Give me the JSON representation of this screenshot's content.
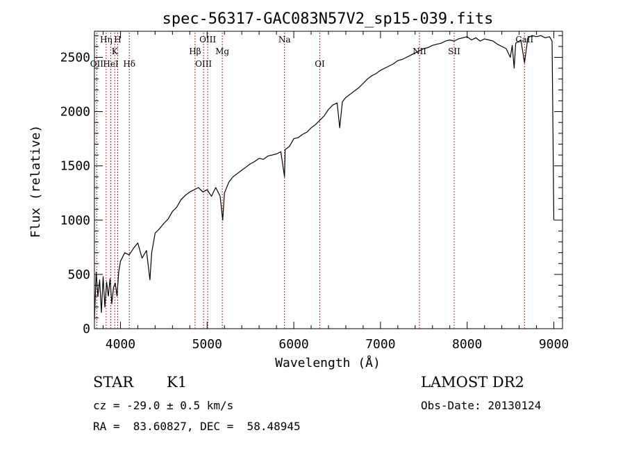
{
  "chart_data": {
    "type": "line",
    "title": "spec-56317-GAC083N57V2_sp15-039.fits",
    "xlabel": "Wavelength (Å)",
    "ylabel": "Flux (relative)",
    "xlim": [
      3700,
      9100
    ],
    "ylim": [
      0,
      2740
    ],
    "xticks": [
      4000,
      5000,
      6000,
      7000,
      8000,
      9000
    ],
    "xticks_labels": [
      "4000",
      "5000",
      "6000",
      "7000",
      "8000",
      "9000"
    ],
    "yticks": [
      0,
      500,
      1000,
      1500,
      2000,
      2500
    ],
    "yticks_labels": [
      "0",
      "500",
      "1000",
      "1500",
      "2000",
      "2500"
    ],
    "grid": false,
    "line_color": "#000000",
    "marker_color": "#b22222",
    "series": [
      {
        "x": [
          3700,
          3720,
          3740,
          3760,
          3780,
          3800,
          3820,
          3840,
          3860,
          3880,
          3900,
          3920,
          3940,
          3960,
          3980,
          4000,
          4050,
          4100,
          4150,
          4200,
          4250,
          4300,
          4340,
          4360,
          4400,
          4450,
          4500,
          4550,
          4600,
          4650,
          4700,
          4750,
          4800,
          4850,
          4900,
          4950,
          5000,
          5050,
          5100,
          5150,
          5180,
          5200,
          5250,
          5300,
          5350,
          5400,
          5450,
          5500,
          5550,
          5600,
          5650,
          5700,
          5750,
          5800,
          5850,
          5893,
          5900,
          5950,
          6000,
          6050,
          6100,
          6150,
          6200,
          6250,
          6300,
          6350,
          6400,
          6450,
          6500,
          6530,
          6560,
          6600,
          6650,
          6700,
          6750,
          6800,
          6850,
          6900,
          6950,
          7000,
          7050,
          7100,
          7150,
          7200,
          7250,
          7300,
          7350,
          7400,
          7450,
          7500,
          7550,
          7600,
          7650,
          7700,
          7750,
          7800,
          7850,
          7900,
          7950,
          8000,
          8050,
          8100,
          8150,
          8200,
          8250,
          8300,
          8350,
          8400,
          8450,
          8498,
          8520,
          8542,
          8560,
          8600,
          8620,
          8662,
          8700,
          8750,
          8800,
          8850,
          8900,
          8950,
          8980,
          9000
        ],
        "y": [
          80,
          520,
          300,
          450,
          150,
          480,
          200,
          430,
          300,
          460,
          230,
          380,
          420,
          300,
          520,
          620,
          700,
          680,
          740,
          790,
          650,
          720,
          450,
          700,
          880,
          920,
          970,
          1010,
          1080,
          1120,
          1190,
          1230,
          1260,
          1280,
          1300,
          1260,
          1280,
          1220,
          1300,
          1220,
          1000,
          1250,
          1350,
          1400,
          1430,
          1460,
          1490,
          1520,
          1540,
          1570,
          1560,
          1590,
          1600,
          1610,
          1630,
          1400,
          1650,
          1680,
          1750,
          1760,
          1790,
          1810,
          1850,
          1880,
          1920,
          1960,
          2020,
          2060,
          2080,
          1850,
          2090,
          2130,
          2160,
          2190,
          2220,
          2260,
          2300,
          2330,
          2350,
          2380,
          2400,
          2420,
          2440,
          2470,
          2480,
          2500,
          2520,
          2540,
          2560,
          2580,
          2590,
          2610,
          2620,
          2630,
          2650,
          2660,
          2650,
          2670,
          2680,
          2690,
          2660,
          2680,
          2650,
          2670,
          2660,
          2650,
          2620,
          2600,
          2580,
          2500,
          2610,
          2400,
          2630,
          2650,
          2660,
          2450,
          2680,
          2700,
          2690,
          2700,
          2680,
          2690,
          2650,
          1000
        ]
      }
    ],
    "line_markers": [
      {
        "label": "OII",
        "x": 3727,
        "row": 3
      },
      {
        "label": "Hη",
        "x": 3835,
        "row": 1
      },
      {
        "label": "HeI",
        "x": 3889,
        "row": 3
      },
      {
        "label": "K",
        "x": 3934,
        "row": 2
      },
      {
        "label": "H",
        "x": 3968,
        "row": 1
      },
      {
        "label": "Hδ",
        "x": 4102,
        "row": 3
      },
      {
        "label": "Hβ",
        "x": 4861,
        "row": 2
      },
      {
        "label": "OIII",
        "x": 4959,
        "row": 3
      },
      {
        "label": "OIII",
        "x": 5007,
        "row": 1
      },
      {
        "label": "Mg",
        "x": 5175,
        "row": 2
      },
      {
        "label": "Na",
        "x": 5893,
        "row": 1
      },
      {
        "label": "OI",
        "x": 6300,
        "row": 3
      },
      {
        "label": "NII",
        "x": 7450,
        "row": 2
      },
      {
        "label": "SII",
        "x": 7850,
        "row": 2
      },
      {
        "label": "CaII",
        "x": 8662,
        "row": 1
      }
    ]
  },
  "info": {
    "object_type": "STAR",
    "subclass": "K1",
    "survey": "LAMOST DR2",
    "cz": "cz = -29.0 ± 0.5 km/s",
    "obs_date": "Obs-Date: 20130124",
    "coords": "RA =  83.60827, DEC =  58.48945"
  }
}
